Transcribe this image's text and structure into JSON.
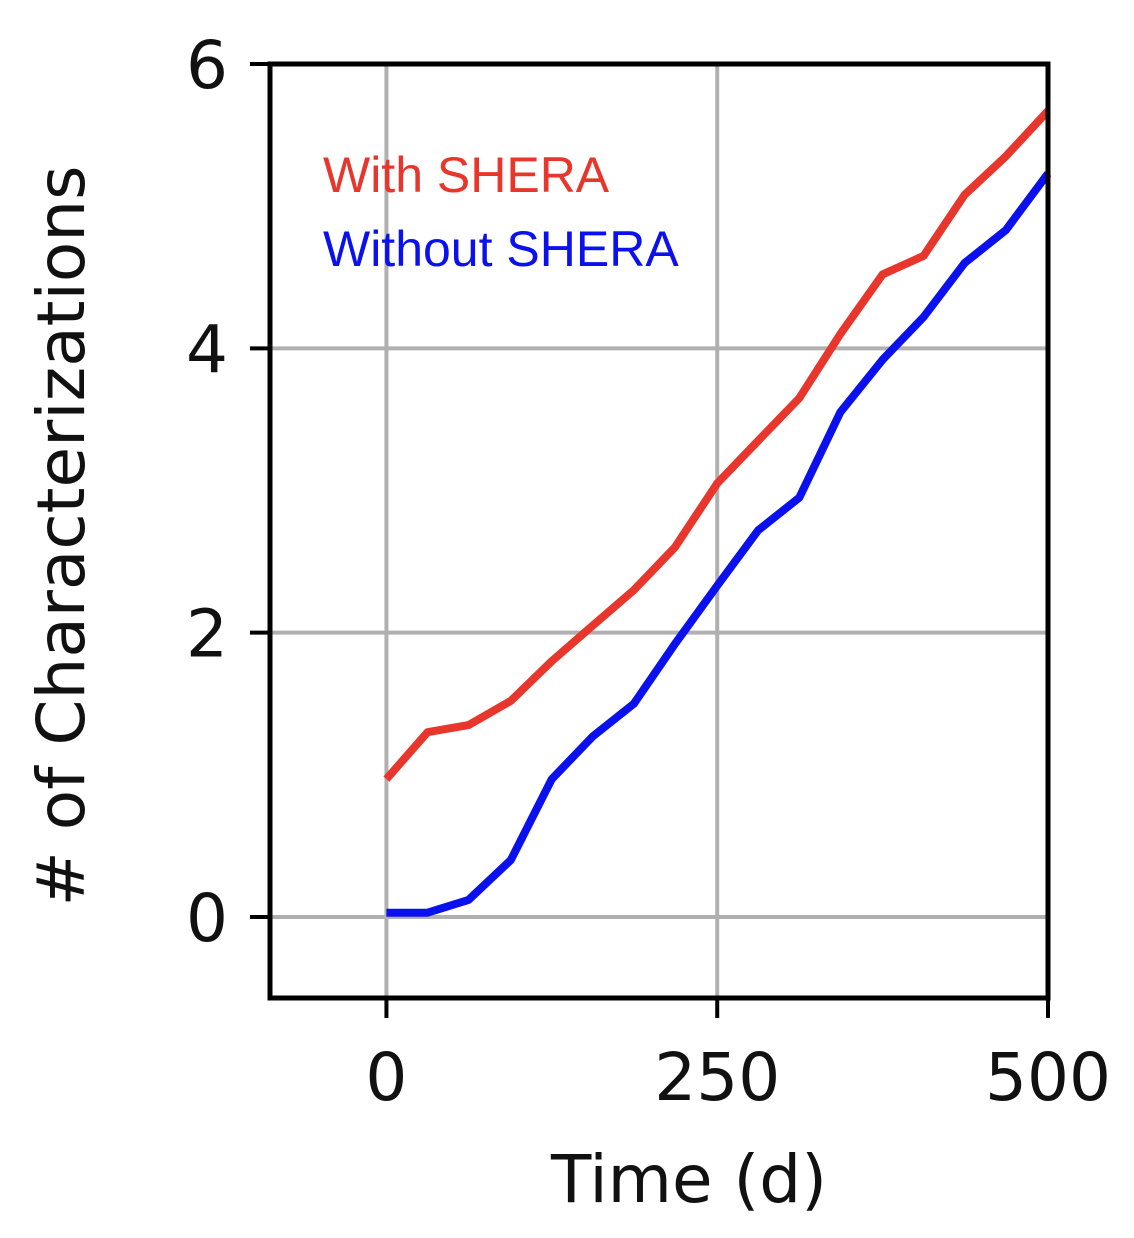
{
  "chart_data": {
    "type": "line",
    "title": "",
    "xlabel": "Time (d)",
    "ylabel": "# of Characterizations",
    "xlim": [
      -88,
      500
    ],
    "ylim": [
      -0.57,
      6
    ],
    "xticks": [
      0,
      250,
      500
    ],
    "yticks": [
      0,
      2,
      4,
      6
    ],
    "x_tick_labels": [
      "0",
      "250",
      "500"
    ],
    "y_tick_labels": [
      "0",
      "2",
      "4",
      "6"
    ],
    "grid": true,
    "legend_placement": "top-left",
    "series": [
      {
        "name": "With SHERA",
        "color": "#e8362c",
        "x": [
          0,
          31,
          62,
          94,
          125,
          156,
          187,
          218,
          250,
          281,
          312,
          343,
          375,
          406,
          437,
          468,
          500
        ],
        "y": [
          0.97,
          1.3,
          1.35,
          1.52,
          1.8,
          2.05,
          2.3,
          2.6,
          3.05,
          3.35,
          3.65,
          4.1,
          4.52,
          4.65,
          5.08,
          5.35,
          5.67
        ]
      },
      {
        "name": "Without SHERA",
        "color": "#0a10ee",
        "x": [
          0,
          31,
          62,
          94,
          125,
          156,
          187,
          218,
          250,
          281,
          312,
          343,
          375,
          406,
          437,
          468,
          500
        ],
        "y": [
          0.03,
          0.03,
          0.12,
          0.4,
          0.97,
          1.27,
          1.5,
          1.92,
          2.33,
          2.72,
          2.95,
          3.55,
          3.92,
          4.22,
          4.6,
          4.83,
          5.23
        ]
      }
    ]
  }
}
